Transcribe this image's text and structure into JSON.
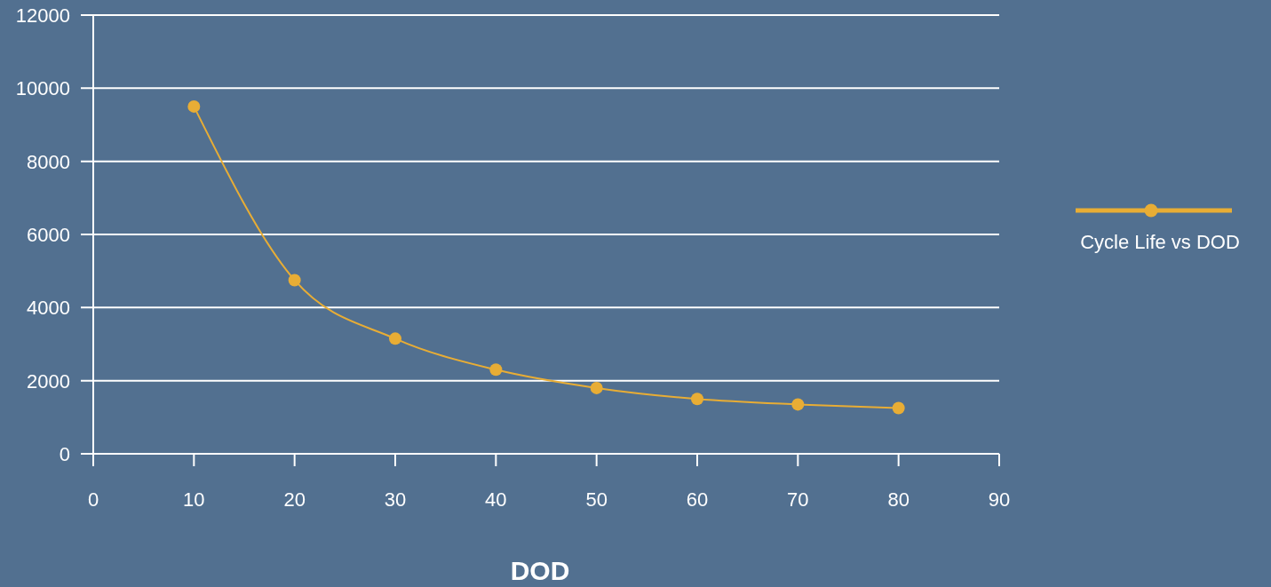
{
  "chart_data": {
    "type": "line",
    "xlabel": "DOD",
    "x": [
      10,
      20,
      30,
      40,
      50,
      60,
      70,
      80
    ],
    "series": [
      {
        "name": "Cycle Life vs DOD",
        "color": "#e8ad35",
        "values": [
          9500,
          4750,
          3150,
          2300,
          1800,
          1500,
          1350,
          1250
        ]
      }
    ],
    "xlim": [
      0,
      90
    ],
    "xticks": [
      0,
      10,
      20,
      30,
      40,
      50,
      60,
      70,
      80,
      90
    ],
    "ylim": [
      0,
      12000
    ],
    "yticks": [
      0,
      2000,
      4000,
      6000,
      8000,
      10000,
      12000
    ],
    "grid": "y",
    "legend": "right",
    "marker": "circle",
    "line_style": "solid"
  }
}
